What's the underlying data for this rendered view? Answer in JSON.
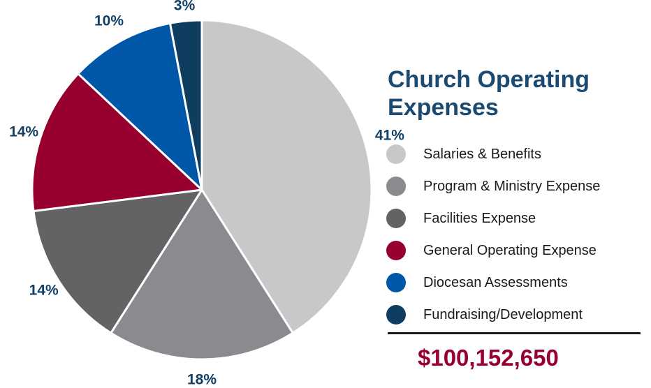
{
  "chart_data": {
    "type": "pie",
    "title": "Church Operating Expenses",
    "categories": [
      "Salaries & Benefits",
      "Program & Ministry Expense",
      "Facilities Expense",
      "General Operating Expense",
      "Diocesan Assessments",
      "Fundraising/Development"
    ],
    "values": [
      41,
      18,
      14,
      14,
      10,
      3
    ],
    "data_labels": [
      "41%",
      "18%",
      "14%",
      "14%",
      "10%",
      "3%"
    ],
    "colors": [
      "#c7c8ca",
      "#8a8b8f",
      "#636366",
      "#97002e",
      "#0057a8",
      "#0f3d5f"
    ],
    "start": "top",
    "direction": "clockwise",
    "legend_position": "right"
  },
  "total": "$100,152,650"
}
